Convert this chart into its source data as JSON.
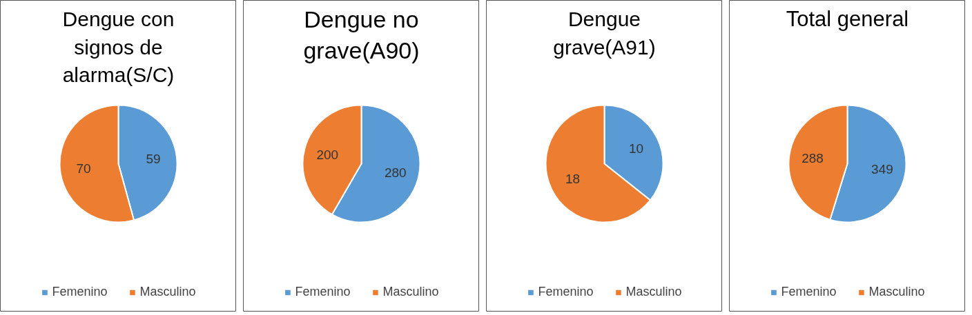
{
  "chart_data": [
    {
      "type": "pie",
      "title": "Dengue con signos de alarma(S/C)",
      "categories": [
        "Femenino",
        "Masculino"
      ],
      "values": [
        59,
        70
      ],
      "colors": [
        "#5b9bd5",
        "#ed7d31"
      ],
      "data_labels": true,
      "legend": "bottom"
    },
    {
      "type": "pie",
      "title": "Dengue no grave(A90)",
      "categories": [
        "Femenino",
        "Masculino"
      ],
      "values": [
        280,
        200
      ],
      "colors": [
        "#5b9bd5",
        "#ed7d31"
      ],
      "data_labels": true,
      "legend": "bottom"
    },
    {
      "type": "pie",
      "title": "Dengue grave(A91)",
      "categories": [
        "Femenino",
        "Masculino"
      ],
      "values": [
        10,
        18
      ],
      "colors": [
        "#5b9bd5",
        "#ed7d31"
      ],
      "data_labels": true,
      "legend": "bottom"
    },
    {
      "type": "pie",
      "title": "Total general",
      "categories": [
        "Femenino",
        "Masculino"
      ],
      "values": [
        349,
        288
      ],
      "colors": [
        "#5b9bd5",
        "#ed7d31"
      ],
      "data_labels": true,
      "legend": "bottom"
    }
  ]
}
